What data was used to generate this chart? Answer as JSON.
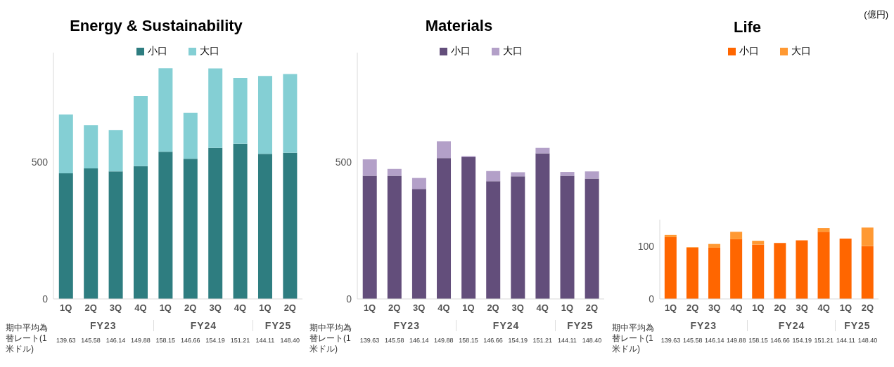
{
  "chart_data": [
    {
      "type": "bar",
      "title": "Energy & Sustainability",
      "categories": [
        "1Q",
        "2Q",
        "3Q",
        "4Q",
        "1Q",
        "2Q",
        "3Q",
        "4Q",
        "1Q",
        "2Q"
      ],
      "stacked": true,
      "legend": "top",
      "ylim": [
        0,
        900
      ],
      "yticks": [
        0,
        500
      ],
      "series": [
        {
          "name": "小口",
          "color": "#2e7d80",
          "values": [
            459,
            477,
            466,
            485,
            538,
            512,
            552,
            567,
            530,
            534
          ]
        },
        {
          "name": "大口",
          "color": "#84cfd4",
          "values": [
            215,
            158,
            151,
            256,
            305,
            168,
            290,
            241,
            285,
            288
          ]
        }
      ],
      "annotations": [
        "FY23",
        "FY24",
        "FY25",
        "期中平均為替レート(1米ドル)",
        "139.63",
        "145.58",
        "146.14",
        "149.88",
        "158.15",
        "146.66",
        "154.19",
        "151.21",
        "144.11",
        "148.40"
      ]
    },
    {
      "type": "bar",
      "title": "Materials",
      "categories": [
        "1Q",
        "2Q",
        "3Q",
        "4Q",
        "1Q",
        "2Q",
        "3Q",
        "4Q",
        "1Q",
        "2Q"
      ],
      "stacked": true,
      "legend": "top",
      "ylim": [
        0,
        900
      ],
      "yticks": [
        0,
        500
      ],
      "series": [
        {
          "name": "小口",
          "color": "#634e7b",
          "values": [
            450,
            450,
            402,
            515,
            518,
            430,
            448,
            532,
            450,
            440
          ]
        },
        {
          "name": "大口",
          "color": "#b3a0c8",
          "values": [
            60,
            25,
            40,
            61,
            4,
            37,
            15,
            20,
            14,
            26
          ]
        }
      ],
      "annotations": [
        "FY23",
        "FY24",
        "FY25",
        "期中平均為替レート(1米ドル)",
        "139.63",
        "145.58",
        "146.14",
        "149.88",
        "158.15",
        "146.66",
        "154.19",
        "151.21",
        "144.11",
        "148.40"
      ]
    },
    {
      "type": "bar",
      "title": "Life",
      "categories": [
        "1Q",
        "2Q",
        "3Q",
        "4Q",
        "1Q",
        "2Q",
        "3Q",
        "4Q",
        "1Q",
        "2Q"
      ],
      "stacked": true,
      "legend": "top",
      "ylim": [
        0,
        150
      ],
      "yticks": [
        0,
        100
      ],
      "series": [
        {
          "name": "小口",
          "color": "#ff6600",
          "values": [
            117,
            97,
            97,
            113,
            103,
            106,
            111,
            127,
            114,
            100
          ]
        },
        {
          "name": "大口",
          "color": "#ff9933",
          "values": [
            4,
            1,
            7,
            14,
            7,
            0,
            0,
            7,
            0,
            35
          ]
        }
      ],
      "annotations": [
        "FY23",
        "FY24",
        "FY25",
        "期中平均為替レート(1米ドル)",
        "139.63",
        "145.58",
        "146.14",
        "149.88",
        "158.15",
        "146.66",
        "154.19",
        "151.21",
        "144.11",
        "148.40",
        "(億円)"
      ]
    }
  ]
}
